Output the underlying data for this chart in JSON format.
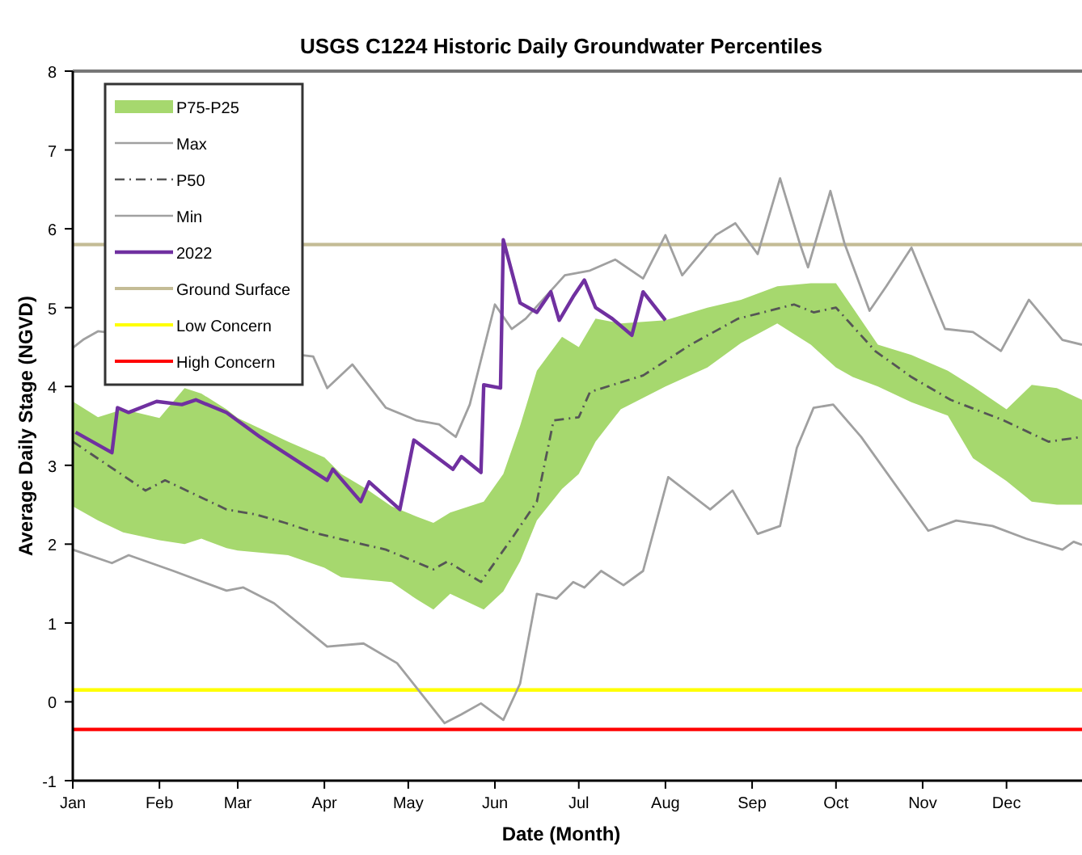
{
  "chart_data": {
    "type": "line",
    "title": "USGS C1224 Historic Daily Groundwater Percentiles",
    "xlabel": "Date (Month)",
    "ylabel": "Average Daily Stage (NGVD)",
    "xlim": [
      "--01-01",
      "--12-28"
    ],
    "xticks": [
      {
        "value": "--01-01",
        "label": "Jan"
      },
      {
        "value": "--02-01",
        "label": "Feb"
      },
      {
        "value": "--03-01",
        "label": "Mar"
      },
      {
        "value": "--04-01",
        "label": "Apr"
      },
      {
        "value": "--05-01",
        "label": "May"
      },
      {
        "value": "--06-01",
        "label": "Jun"
      },
      {
        "value": "--07-01",
        "label": "Jul"
      },
      {
        "value": "--08-01",
        "label": "Aug"
      },
      {
        "value": "--09-01",
        "label": "Sep"
      },
      {
        "value": "--10-01",
        "label": "Oct"
      },
      {
        "value": "--11-01",
        "label": "Nov"
      },
      {
        "value": "--12-01",
        "label": "Dec"
      }
    ],
    "ylim": [
      -1,
      8
    ],
    "yticks": [
      -1,
      0,
      1,
      2,
      3,
      4,
      5,
      6,
      7,
      8
    ],
    "grid": false,
    "legend": "top left",
    "marker": "none",
    "series": [
      {
        "name": "P75-P25",
        "type": "area",
        "color": "#a6d86e",
        "x": [
          "--01-01",
          "--01-10",
          "--01-19",
          "--02-01",
          "--02-10",
          "--02-16",
          "--02-25",
          "--03-01",
          "--03-19",
          "--04-01",
          "--04-07",
          "--04-16",
          "--04-25",
          "--05-04",
          "--05-10",
          "--05-16",
          "--05-28",
          "--06-04",
          "--06-10",
          "--06-16",
          "--06-25",
          "--07-01",
          "--07-07",
          "--07-16",
          "--08-01",
          "--08-16",
          "--08-28",
          "--09-10",
          "--09-22",
          "--10-01",
          "--10-07",
          "--10-16",
          "--10-28",
          "--11-10",
          "--11-19",
          "--12-01",
          "--12-10",
          "--12-19",
          "--12-28"
        ],
        "values": [
          null,
          null,
          null,
          null,
          null,
          null,
          null,
          null,
          null,
          null,
          null,
          null,
          null,
          null,
          null,
          null,
          null,
          null,
          null,
          null,
          null,
          null,
          null,
          null,
          null,
          null,
          null,
          null,
          null,
          null,
          null,
          null,
          null,
          null,
          null,
          null,
          null,
          null,
          null
        ],
        "upper": [
          3.81,
          3.61,
          3.71,
          3.6,
          3.98,
          3.91,
          3.71,
          3.6,
          3.3,
          3.1,
          2.89,
          2.7,
          2.48,
          2.35,
          2.27,
          2.4,
          2.54,
          2.89,
          3.5,
          4.2,
          4.63,
          4.5,
          4.86,
          4.8,
          4.84,
          5.0,
          5.1,
          5.27,
          5.31,
          5.31,
          5.0,
          4.53,
          4.4,
          4.2,
          4.0,
          3.71,
          4.02,
          3.98,
          3.83
        ],
        "lower": [
          2.48,
          2.3,
          2.15,
          2.05,
          2.0,
          2.07,
          1.95,
          1.92,
          1.86,
          1.7,
          1.58,
          1.55,
          1.52,
          1.3,
          1.17,
          1.37,
          1.17,
          1.4,
          1.78,
          2.3,
          2.7,
          2.89,
          3.3,
          3.71,
          4.0,
          4.24,
          4.55,
          4.8,
          4.53,
          4.24,
          4.12,
          4.0,
          3.8,
          3.63,
          3.09,
          2.8,
          2.54,
          2.5,
          2.5
        ]
      },
      {
        "name": "Max",
        "color": "#a0a0a0",
        "x": [
          "--01-01",
          "--01-05",
          "--01-10",
          "--03-28",
          "--04-02",
          "--04-11",
          "--04-23",
          "--05-04",
          "--05-12",
          "--05-18",
          "--05-23",
          "--06-01",
          "--06-07",
          "--06-12",
          "--06-26",
          "--07-05",
          "--07-14",
          "--07-24",
          "--08-01",
          "--08-07",
          "--08-19",
          "--08-26",
          "--09-03",
          "--09-11",
          "--09-18",
          "--09-21",
          "--09-29",
          "--10-04",
          "--10-13",
          "--10-19",
          "--10-28",
          "--11-09",
          "--11-19",
          "--11-29",
          "--12-09",
          "--12-21",
          "--12-28"
        ],
        "values": [
          4.49,
          4.6,
          4.7,
          4.38,
          3.98,
          4.28,
          3.73,
          3.57,
          3.52,
          3.36,
          3.77,
          5.04,
          4.73,
          4.86,
          5.41,
          5.47,
          5.61,
          5.37,
          5.92,
          5.41,
          5.92,
          6.07,
          5.68,
          6.64,
          5.82,
          5.51,
          6.48,
          5.82,
          4.96,
          5.27,
          5.76,
          4.73,
          4.69,
          4.45,
          5.1,
          4.59,
          4.53
        ]
      },
      {
        "name": "P50",
        "color": "#555555",
        "line_style": "dashed",
        "x": [
          "--01-01",
          "--01-27",
          "--02-03",
          "--02-25",
          "--03-07",
          "--03-18",
          "--03-30",
          "--04-23",
          "--05-10",
          "--05-15",
          "--05-27",
          "--06-07",
          "--06-16",
          "--06-22",
          "--07-01",
          "--07-05",
          "--07-24",
          "--08-10",
          "--08-27",
          "--09-16",
          "--09-23",
          "--10-01",
          "--10-15",
          "--10-28",
          "--11-11",
          "--11-30",
          "--12-16",
          "--12-28"
        ],
        "values": [
          3.3,
          2.68,
          2.81,
          2.44,
          2.38,
          2.27,
          2.13,
          1.93,
          1.68,
          1.78,
          1.52,
          2.07,
          2.54,
          3.57,
          3.61,
          3.93,
          4.14,
          4.53,
          4.86,
          5.04,
          4.94,
          5.0,
          4.45,
          4.12,
          3.83,
          3.57,
          3.3,
          3.36
        ]
      },
      {
        "name": "Min",
        "color": "#a0a0a0",
        "x": [
          "--01-01",
          "--01-15",
          "--01-21",
          "--02-06",
          "--02-25",
          "--03-03",
          "--03-14",
          "--04-02",
          "--04-15",
          "--04-27",
          "--05-14",
          "--05-20",
          "--05-27",
          "--06-04",
          "--06-10",
          "--06-16",
          "--06-23",
          "--06-29",
          "--07-03",
          "--07-09",
          "--07-17",
          "--07-24",
          "--08-02",
          "--08-17",
          "--08-25",
          "--09-03",
          "--09-11",
          "--09-17",
          "--09-23",
          "--09-30",
          "--10-10",
          "--11-03",
          "--11-13",
          "--11-26",
          "--12-08",
          "--12-21",
          "--12-25",
          "--12-28"
        ],
        "values": [
          1.93,
          1.76,
          1.86,
          1.66,
          1.41,
          1.45,
          1.25,
          0.7,
          0.74,
          0.49,
          -0.27,
          -0.16,
          -0.02,
          -0.23,
          0.23,
          1.37,
          1.31,
          1.52,
          1.45,
          1.66,
          1.48,
          1.66,
          2.85,
          2.44,
          2.68,
          2.13,
          2.23,
          3.22,
          3.73,
          3.77,
          3.36,
          2.17,
          2.3,
          2.23,
          2.07,
          1.93,
          2.03,
          1.99
        ]
      },
      {
        "name": "2022",
        "color": "#7030a0",
        "x": [
          "--01-02",
          "--01-15",
          "--01-17",
          "--01-21",
          "--01-31",
          "--02-09",
          "--02-14",
          "--02-25",
          "--03-09",
          "--04-02",
          "--04-04",
          "--04-14",
          "--04-17",
          "--04-28",
          "--05-03",
          "--05-17",
          "--05-20",
          "--05-27",
          "--05-28",
          "--06-03",
          "--06-04",
          "--06-10",
          "--06-16",
          "--06-21",
          "--06-24",
          "--06-29",
          "--07-03",
          "--07-07",
          "--07-13",
          "--07-20",
          "--07-24",
          "--08-01"
        ],
        "values": [
          3.42,
          3.16,
          3.73,
          3.67,
          3.81,
          3.77,
          3.83,
          3.67,
          3.36,
          2.81,
          2.95,
          2.54,
          2.79,
          2.44,
          3.32,
          2.95,
          3.11,
          2.91,
          4.02,
          3.98,
          5.86,
          5.06,
          4.94,
          5.2,
          4.84,
          5.14,
          5.35,
          5.0,
          4.86,
          4.65,
          5.2,
          4.84
        ]
      }
    ],
    "ref_lines": [
      {
        "axis": "y",
        "value": 5.8,
        "label": "Ground Surface",
        "color": "#c4bc96"
      },
      {
        "axis": "y",
        "value": 0.15,
        "label": "Low Concern",
        "color": "#ffff00"
      },
      {
        "axis": "y",
        "value": -0.35,
        "label": "High Concern",
        "color": "#ff0000"
      }
    ]
  }
}
